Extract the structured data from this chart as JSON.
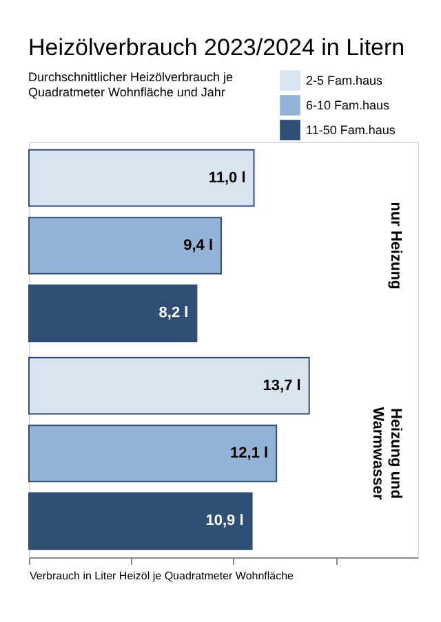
{
  "chart_data": {
    "type": "bar",
    "orientation": "horizontal",
    "title": "Heizölverbrauch 2023/2024 in Litern",
    "subtitle": "Durchschnittlicher Heizölverbrauch je Quadratmeter Wohnfläche und Jahr",
    "xlabel": "Verbrauch in Liter Heizöl je Quadratmeter Wohnfläche",
    "categories": [
      "nur Heizung",
      "Heizung und Warmwasser"
    ],
    "series": [
      {
        "name": "2-5 Fam.haus",
        "color": "#dae3f0",
        "values": [
          11.0,
          13.7
        ],
        "value_labels": [
          "11,0 l",
          "13,7 l"
        ]
      },
      {
        "name": "6-10 Fam.haus",
        "color": "#95b3d7",
        "values": [
          9.4,
          12.1
        ],
        "value_labels": [
          "9,4 l",
          "12,1 l"
        ]
      },
      {
        "name": "11-50 Fam.haus",
        "color": "#2f4f75",
        "values": [
          8.2,
          10.9
        ],
        "value_labels": [
          "8,2 l",
          "10,9 l"
        ]
      }
    ],
    "xlim": [
      0,
      19
    ],
    "xticks": [
      {
        "value": 0,
        "label": null
      },
      {
        "value": 5,
        "label": null
      },
      {
        "value": 10,
        "label": null
      },
      {
        "value": 15,
        "label": null
      }
    ],
    "tick_labels": "y",
    "legend": "top right"
  }
}
